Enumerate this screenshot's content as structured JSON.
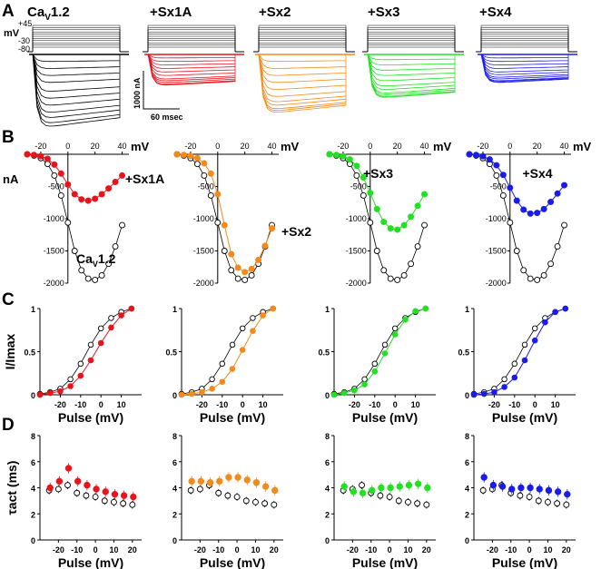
{
  "panels": [
    "A",
    "B",
    "C",
    "D"
  ],
  "colors": {
    "control": "#000000",
    "Sx1A": "#e8141c",
    "Sx2": "#f28a1c",
    "Sx3": "#22e022",
    "Sx4": "#1c1ce8"
  },
  "row_a": {
    "titles": [
      "CaV1.2",
      "+Sx1A",
      "+Sx2",
      "+Sx3",
      "+Sx4"
    ],
    "title_main": "Ca",
    "title_sub": "V",
    "title_tail": "1.2",
    "protocol_labels": {
      "unit": "mV",
      "top": "+45",
      "mid": "-30",
      "bottom": "-80"
    },
    "scale_bar": {
      "current": "1000 nA",
      "time": "60 msec"
    }
  },
  "chart_data": [
    {
      "type": "line",
      "panel": "B",
      "title": "",
      "xlabel": "mV",
      "ylabel": "nA",
      "xlim": [
        -30,
        45
      ],
      "ylim": [
        -2000,
        0
      ],
      "xticks": [
        "-20",
        "0",
        "20",
        "40"
      ],
      "yticks": [
        "-500",
        "-1000",
        "-1500",
        "-2000"
      ],
      "x": [
        -30,
        -25,
        -20,
        -15,
        -10,
        -5,
        0,
        5,
        10,
        15,
        20,
        25,
        30,
        35,
        40
      ],
      "control_label": "CaV1.2",
      "control": [
        0,
        -20,
        -60,
        -150,
        -330,
        -640,
        -1060,
        -1500,
        -1800,
        -1930,
        -1950,
        -1880,
        -1700,
        -1430,
        -1100
      ],
      "series": [
        {
          "name": "+Sx1A",
          "values": [
            0,
            -10,
            -30,
            -70,
            -160,
            -300,
            -470,
            -620,
            -700,
            -720,
            -690,
            -620,
            -530,
            -430,
            -330
          ]
        },
        {
          "name": "+Sx2",
          "values": [
            0,
            -10,
            -25,
            -60,
            -140,
            -300,
            -620,
            -1100,
            -1550,
            -1760,
            -1830,
            -1780,
            -1640,
            -1420,
            -1150
          ]
        },
        {
          "name": "+Sx3",
          "values": [
            0,
            -10,
            -30,
            -80,
            -180,
            -360,
            -600,
            -850,
            -1050,
            -1150,
            -1170,
            -1100,
            -970,
            -800,
            -620
          ]
        },
        {
          "name": "+Sx4",
          "values": [
            0,
            -10,
            -30,
            -80,
            -170,
            -320,
            -520,
            -720,
            -860,
            -920,
            -910,
            -850,
            -740,
            -610,
            -480
          ]
        }
      ],
      "series_labels": [
        "+Sx1A",
        "+Sx2",
        "+Sx3",
        "+Sx4"
      ]
    },
    {
      "type": "line",
      "panel": "C",
      "title": "",
      "xlabel": "Pulse (mV)",
      "ylabel": "I/Imax",
      "xlim": [
        -30,
        20
      ],
      "ylim": [
        0,
        1
      ],
      "xticks": [
        "-20",
        "-10",
        "0",
        "10"
      ],
      "yticks": [
        "0",
        "0.5",
        "1"
      ],
      "x": [
        -30,
        -25,
        -20,
        -15,
        -10,
        -5,
        0,
        5,
        10,
        15
      ],
      "control": [
        0.01,
        0.03,
        0.07,
        0.18,
        0.36,
        0.58,
        0.77,
        0.89,
        0.96,
        1.0
      ],
      "series": [
        {
          "name": "+Sx1A",
          "values": [
            0.0,
            0.02,
            0.04,
            0.1,
            0.22,
            0.4,
            0.6,
            0.78,
            0.92,
            1.0
          ]
        },
        {
          "name": "+Sx2",
          "values": [
            0.0,
            0.01,
            0.03,
            0.07,
            0.15,
            0.3,
            0.52,
            0.74,
            0.92,
            1.0
          ]
        },
        {
          "name": "+Sx3",
          "values": [
            0.0,
            0.02,
            0.05,
            0.12,
            0.27,
            0.48,
            0.7,
            0.87,
            0.97,
            1.0
          ]
        },
        {
          "name": "+Sx4",
          "values": [
            0.0,
            0.01,
            0.03,
            0.09,
            0.2,
            0.4,
            0.63,
            0.84,
            0.96,
            1.0
          ]
        }
      ]
    },
    {
      "type": "scatter",
      "panel": "D",
      "title": "",
      "xlabel": "Pulse (mV)",
      "ylabel": "τact (ms)",
      "xlim": [
        -30,
        25
      ],
      "ylim": [
        0,
        8
      ],
      "xticks": [
        "-20",
        "-10",
        "0",
        "10",
        "20"
      ],
      "yticks": [
        "0",
        "2",
        "4",
        "6",
        "8"
      ],
      "x": [
        -25,
        -20,
        -15,
        -10,
        -5,
        0,
        5,
        10,
        15,
        20
      ],
      "control": [
        3.8,
        3.9,
        4.2,
        3.6,
        3.4,
        3.3,
        3.0,
        2.9,
        2.8,
        2.7
      ],
      "series": [
        {
          "name": "+Sx1A",
          "values": [
            4.0,
            4.5,
            5.5,
            4.5,
            4.2,
            3.9,
            3.7,
            3.5,
            3.4,
            3.3
          ]
        },
        {
          "name": "+Sx2",
          "values": [
            4.5,
            4.5,
            4.4,
            4.5,
            4.8,
            4.8,
            4.6,
            4.4,
            4.1,
            3.8
          ]
        },
        {
          "name": "+Sx3",
          "values": [
            4.1,
            3.7,
            3.6,
            3.8,
            4.0,
            4.0,
            4.1,
            4.2,
            4.3,
            4.0
          ]
        },
        {
          "name": "+Sx4",
          "values": [
            4.8,
            4.2,
            4.1,
            3.9,
            4.0,
            4.0,
            3.9,
            3.8,
            3.7,
            3.5
          ]
        }
      ]
    }
  ]
}
